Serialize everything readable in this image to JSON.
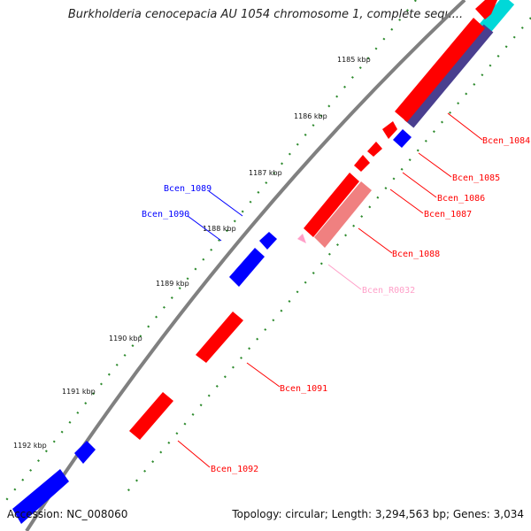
{
  "title": "Burkholderia cenocepacia AU 1054 chromosome 1, complete sequ...",
  "accession": "Accession: NC_008060",
  "summary": "Topology: circular; Length: 3,294,563 bp; Genes: 3,034",
  "colors": {
    "forward_cds": "#ff0000",
    "reverse_cds": "#0000ff",
    "rna": "#ff9fc8",
    "pseudo": "#f08080",
    "backbone": "#808080",
    "ticks": "#2e8b2e",
    "gc_band": "#00d8d8",
    "skew_band": "#4a3f8f"
  },
  "ticks": [
    {
      "label": "1185 kbp"
    },
    {
      "label": "1186 kbp"
    },
    {
      "label": "1187 kbp"
    },
    {
      "label": "1188 kbp"
    },
    {
      "label": "1189 kbp"
    },
    {
      "label": "1190 kbp"
    },
    {
      "label": "1191 kbp"
    },
    {
      "label": "1192 kbp"
    }
  ],
  "genes": [
    {
      "name": "Bcen_1084",
      "strand": "forward"
    },
    {
      "name": "Bcen_1085",
      "strand": "reverse"
    },
    {
      "name": "Bcen_1086",
      "strand": "forward"
    },
    {
      "name": "Bcen_1087",
      "strand": "forward"
    },
    {
      "name": "Bcen_1088",
      "strand": "pseudo"
    },
    {
      "name": "Bcen_R0032",
      "strand": "rna"
    },
    {
      "name": "Bcen_1089",
      "strand": "reverse"
    },
    {
      "name": "Bcen_1090",
      "strand": "reverse"
    },
    {
      "name": "Bcen_1091",
      "strand": "forward"
    },
    {
      "name": "Bcen_1092",
      "strand": "forward"
    }
  ]
}
